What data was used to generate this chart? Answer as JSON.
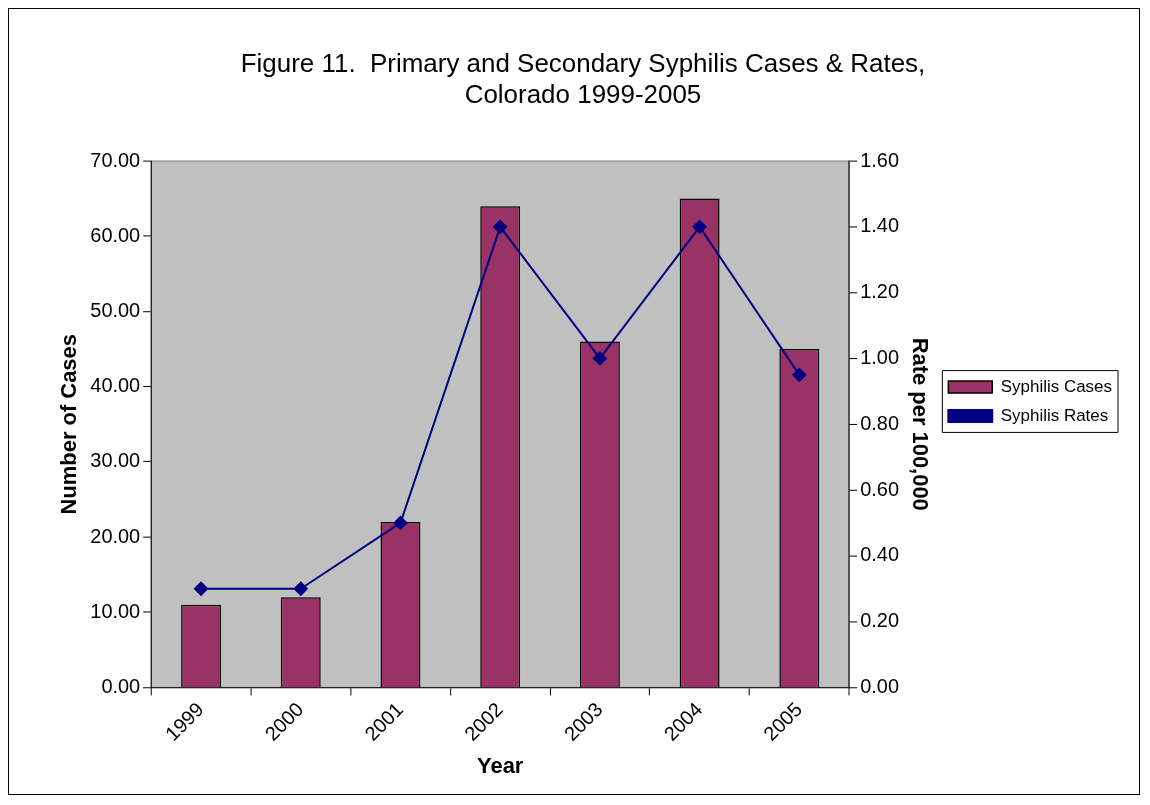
{
  "chart_data": {
    "type": "bar",
    "title": [
      "Figure 11.  Primary and Secondary Syphilis Cases & Rates,",
      "Colorado 1999-2005"
    ],
    "xlabel": "Year",
    "ylabel": "Number of Cases",
    "y2label": "Rate per 100,000",
    "categories": [
      "1999",
      "2000",
      "2001",
      "2002",
      "2003",
      "2004",
      "2005"
    ],
    "series": [
      {
        "name": "Syphilis Cases",
        "color": "#993366",
        "values": [
          11,
          12,
          22,
          64,
          46,
          65,
          45
        ]
      },
      {
        "name": "Syphilis Rates",
        "type": "line",
        "axis": "y2",
        "color": "#000080",
        "marker": "diamond",
        "values": [
          0.3,
          0.3,
          0.5,
          1.4,
          1.0,
          1.4,
          0.95
        ]
      }
    ],
    "ylim": [
      0,
      70
    ],
    "yticks": [
      {
        "value": 0,
        "label": "0.00"
      },
      {
        "value": 10,
        "label": "10.00"
      },
      {
        "value": 20,
        "label": "20.00"
      },
      {
        "value": 30,
        "label": "30.00"
      },
      {
        "value": 40,
        "label": "40.00"
      },
      {
        "value": 50,
        "label": "50.00"
      },
      {
        "value": 60,
        "label": "60.00"
      },
      {
        "value": 70,
        "label": "70.00"
      }
    ],
    "y2lim": [
      0,
      1.6
    ],
    "y2ticks": [
      {
        "value": 0,
        "label": "0.00"
      },
      {
        "value": 0.2,
        "label": "0.20"
      },
      {
        "value": 0.4,
        "label": "0.40"
      },
      {
        "value": 0.6,
        "label": "0.60"
      },
      {
        "value": 0.8,
        "label": "0.80"
      },
      {
        "value": 1.0,
        "label": "1.00"
      },
      {
        "value": 1.2,
        "label": "1.20"
      },
      {
        "value": 1.4,
        "label": "1.40"
      },
      {
        "value": 1.6,
        "label": "1.60"
      }
    ],
    "grid": false,
    "legend": "right"
  }
}
